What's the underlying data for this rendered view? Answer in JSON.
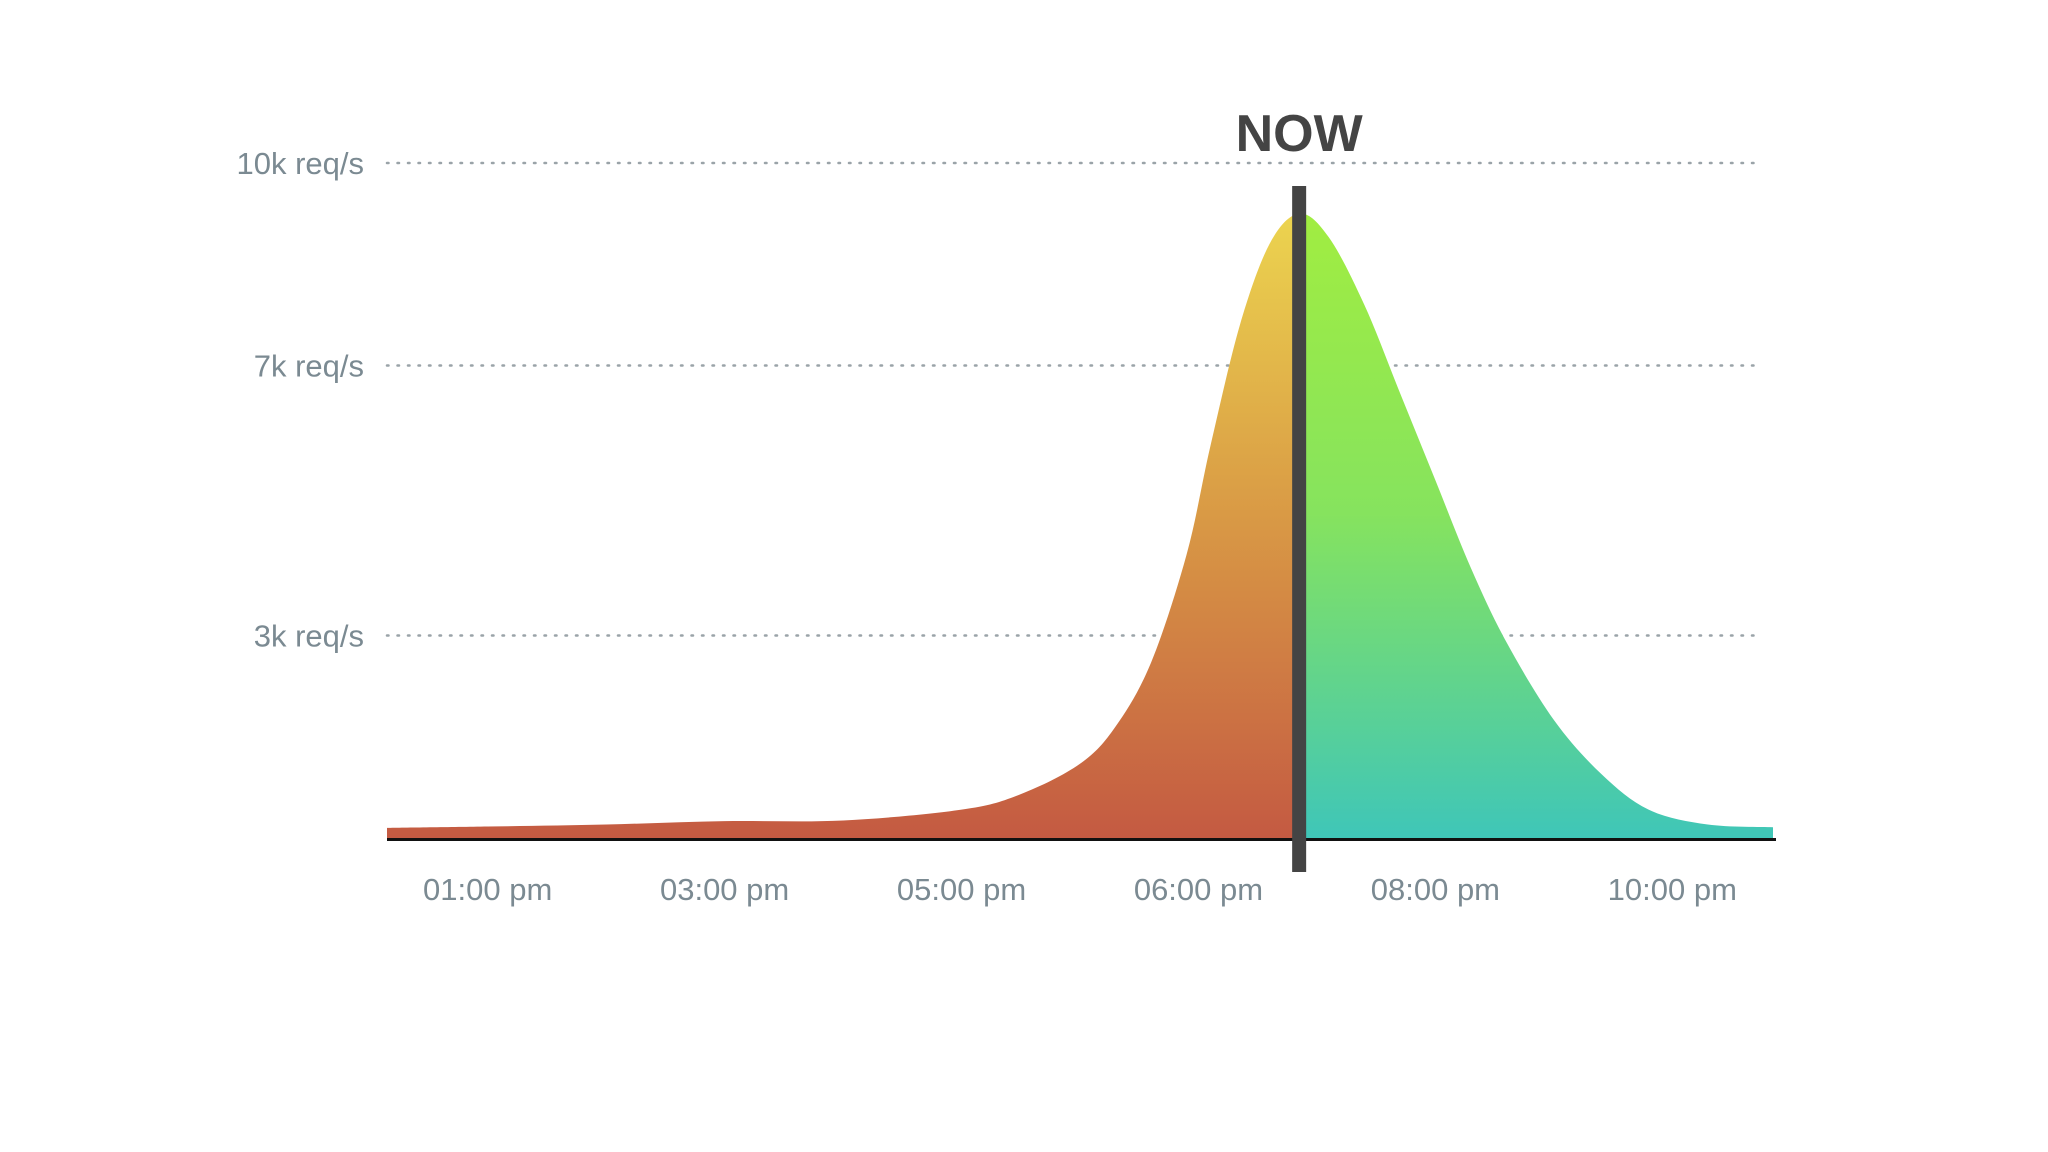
{
  "chart_data": {
    "type": "area",
    "title": "",
    "xlabel": "",
    "ylabel": "",
    "x_ticks": [
      {
        "label": "01:00 pm",
        "x": 1.0
      },
      {
        "label": "03:00 pm",
        "x": 3.0
      },
      {
        "label": "05:00 pm",
        "x": 5.0
      },
      {
        "label": "06:00 pm",
        "x": 7.0
      },
      {
        "label": "08:00 pm",
        "x": 9.0
      },
      {
        "label": "10:00 pm",
        "x": 11.0
      }
    ],
    "y_ticks": [
      {
        "label": "3k req/s",
        "value": 3000
      },
      {
        "label": "7k req/s",
        "value": 7000
      },
      {
        "label": "10k req/s",
        "value": 10000
      }
    ],
    "grid": true,
    "now_marker": {
      "label": "NOW",
      "x": 7.85
    },
    "series": [
      {
        "x": [
          0.15,
          1.0,
          2.0,
          3.0,
          4.0,
          5.0,
          5.5,
          6.0,
          6.3,
          6.6,
          6.9,
          7.1,
          7.35,
          7.6,
          7.85,
          8.1,
          8.4,
          8.7,
          9.0,
          9.3,
          9.6,
          10.0,
          10.4,
          10.8,
          11.3,
          11.85
        ],
        "y": [
          150,
          170,
          200,
          250,
          260,
          420,
          650,
          1100,
          1650,
          2600,
          4200,
          5800,
          7600,
          8800,
          9250,
          8900,
          7900,
          6600,
          5300,
          4000,
          2900,
          1750,
          950,
          420,
          200,
          160
        ]
      }
    ],
    "xlim": [
      0.15,
      11.85
    ],
    "ylim": [
      0,
      10000
    ],
    "colors": {
      "past_top": "#ecd44f",
      "past_mid": "#d99a45",
      "past_bottom": "#c45a42",
      "future_top": "#a1ed41",
      "future_mid": "#86e35e",
      "future_bottom": "#3fc6b8",
      "now_line": "#444444",
      "baseline": "#111111"
    }
  }
}
